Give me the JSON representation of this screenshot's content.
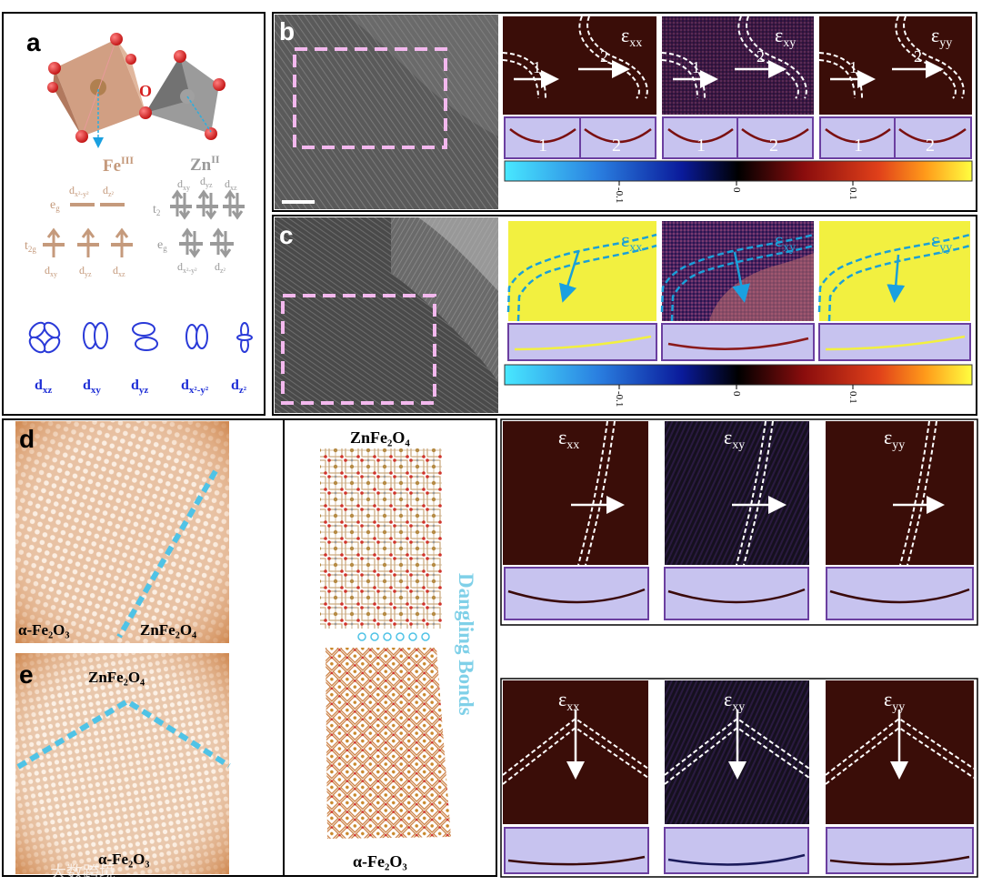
{
  "panels": {
    "a": {
      "label": "a",
      "oxygen_label": "O",
      "fe": {
        "symbol": "Fe",
        "ox": "III"
      },
      "zn": {
        "symbol": "Zn",
        "ox": "II"
      },
      "fe_eg": "e",
      "fe_eg_sub": "g",
      "fe_t2g": "t",
      "fe_t2g_sub": "2g",
      "zn_t2": "t",
      "zn_t2_sub": "2",
      "zn_eg": "e",
      "zn_eg_sub": "g",
      "orb_dxy": "xy",
      "orb_dyz": "yz",
      "orb_dxz": "xz",
      "orb_dx2y2": "x²-y²",
      "orb_dz2": "z²",
      "orbital_names": [
        "xz",
        "xy",
        "yz",
        "x²-y²",
        "z²"
      ],
      "d": "d"
    },
    "b": {
      "label": "b"
    },
    "c": {
      "label": "c"
    },
    "d": {
      "label": "d",
      "left_phase": "α-Fe₂O₃",
      "right_phase": "ZnFe₂O₄"
    },
    "e": {
      "label": "e",
      "top_phase": "ZnFe₂O₄",
      "bottom_phase": "α-Fe₂O₃"
    },
    "model": {
      "top": "ZnFe₂O₄",
      "bottom": "α-Fe₂O₃",
      "side": "Dangling Bonds"
    }
  },
  "strain": {
    "eps": "ε",
    "components": [
      "xx",
      "xy",
      "yy"
    ],
    "region_labels": [
      "1",
      "2"
    ]
  },
  "colorbar": {
    "ticks": [
      "-0.1",
      "0",
      "0.1"
    ]
  },
  "watermark": "大数跨境",
  "colors": {
    "fe_octa": "#c98e6d",
    "zn_tetra": "#8a8a8a",
    "oxygen": "#d62020",
    "fe_text": "#c59a7c",
    "zn_text": "#9a9a9a",
    "orbital_blue": "#1f2fd6",
    "interface_cyan": "#4fc3e6",
    "box_pink": "#f3b8ee",
    "profile_bg": "#c7c3ef",
    "profile_border": "#6b3fa0",
    "strain_bg": "#3a0d08",
    "strain_yellow": "#f2f040"
  }
}
